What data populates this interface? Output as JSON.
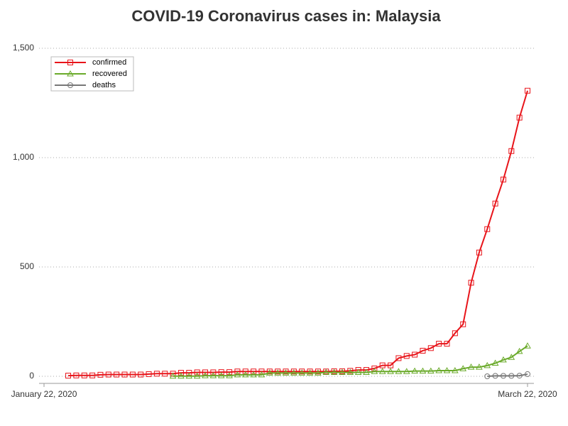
{
  "chart_data": {
    "type": "line",
    "title": "COVID-19 Coronavirus cases in: Malaysia",
    "x": [
      "2020-01-22",
      "2020-01-23",
      "2020-01-24",
      "2020-01-25",
      "2020-01-26",
      "2020-01-27",
      "2020-01-28",
      "2020-01-29",
      "2020-01-30",
      "2020-01-31",
      "2020-02-01",
      "2020-02-02",
      "2020-02-03",
      "2020-02-04",
      "2020-02-05",
      "2020-02-06",
      "2020-02-07",
      "2020-02-08",
      "2020-02-09",
      "2020-02-10",
      "2020-02-11",
      "2020-02-12",
      "2020-02-13",
      "2020-02-14",
      "2020-02-15",
      "2020-02-16",
      "2020-02-17",
      "2020-02-18",
      "2020-02-19",
      "2020-02-20",
      "2020-02-21",
      "2020-02-22",
      "2020-02-23",
      "2020-02-24",
      "2020-02-25",
      "2020-02-26",
      "2020-02-27",
      "2020-02-28",
      "2020-02-29",
      "2020-03-01",
      "2020-03-02",
      "2020-03-03",
      "2020-03-04",
      "2020-03-05",
      "2020-03-06",
      "2020-03-07",
      "2020-03-08",
      "2020-03-09",
      "2020-03-10",
      "2020-03-11",
      "2020-03-12",
      "2020-03-13",
      "2020-03-14",
      "2020-03-15",
      "2020-03-16",
      "2020-03-17",
      "2020-03-18",
      "2020-03-19",
      "2020-03-20",
      "2020-03-21",
      "2020-03-22"
    ],
    "series": [
      {
        "name": "confirmed",
        "color": "#e8141a",
        "marker": "square",
        "values": [
          null,
          null,
          null,
          3,
          4,
          4,
          4,
          7,
          8,
          8,
          8,
          8,
          8,
          10,
          12,
          12,
          12,
          16,
          16,
          18,
          18,
          18,
          19,
          19,
          22,
          22,
          22,
          22,
          22,
          22,
          22,
          22,
          22,
          22,
          22,
          22,
          23,
          23,
          25,
          29,
          29,
          36,
          50,
          50,
          83,
          93,
          99,
          117,
          129,
          149,
          149,
          197,
          238,
          428,
          566,
          673,
          790,
          900,
          1030,
          1183,
          1306
        ]
      },
      {
        "name": "recovered",
        "color": "#6aaa2a",
        "marker": "triangle",
        "values": [
          null,
          null,
          null,
          null,
          null,
          null,
          null,
          null,
          null,
          null,
          null,
          null,
          null,
          null,
          null,
          null,
          1,
          1,
          1,
          1,
          3,
          3,
          3,
          3,
          7,
          7,
          7,
          7,
          15,
          15,
          15,
          15,
          15,
          15,
          15,
          18,
          18,
          18,
          18,
          18,
          18,
          22,
          22,
          22,
          22,
          22,
          24,
          24,
          24,
          26,
          26,
          26,
          35,
          42,
          42,
          49,
          60,
          75,
          87,
          114,
          139
        ]
      },
      {
        "name": "deaths",
        "color": "#777777",
        "marker": "circle",
        "values": [
          null,
          null,
          null,
          null,
          null,
          null,
          null,
          null,
          null,
          null,
          null,
          null,
          null,
          null,
          null,
          null,
          null,
          null,
          null,
          null,
          null,
          null,
          null,
          null,
          null,
          null,
          null,
          null,
          null,
          null,
          null,
          null,
          null,
          null,
          null,
          null,
          null,
          null,
          null,
          null,
          null,
          null,
          null,
          null,
          null,
          null,
          null,
          null,
          null,
          null,
          null,
          null,
          null,
          null,
          null,
          0,
          2,
          2,
          2,
          3,
          10
        ]
      }
    ],
    "xlim": [
      "2020-01-22",
      "2020-03-22"
    ],
    "xticks": [
      {
        "value": "2020-01-22",
        "label": "January 22, 2020"
      },
      {
        "value": "2020-03-22",
        "label": "March 22, 2020"
      }
    ],
    "ylim": [
      0,
      1500
    ],
    "yticks": [
      0,
      500,
      {
        "value": 1000,
        "label": "1,000"
      },
      {
        "value": 1500,
        "label": "1,500"
      }
    ],
    "grid": true,
    "legend": "top-left"
  }
}
